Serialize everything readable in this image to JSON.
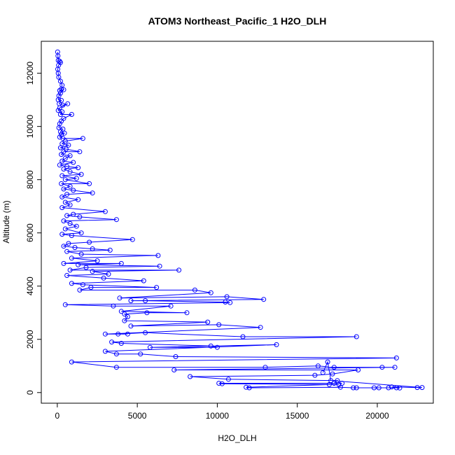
{
  "chart_data": {
    "type": "scatter",
    "title": "ATOM3 Northeast_Pacific_1 H2O_DLH",
    "xlabel": "H2O_DLH",
    "ylabel": "Altitude (m)",
    "xlim": [
      -1000,
      23500
    ],
    "ylim": [
      -400,
      13200
    ],
    "x_ticks": [
      0,
      5000,
      10000,
      15000,
      20000
    ],
    "y_ticks": [
      0,
      2000,
      4000,
      6000,
      8000,
      10000,
      12000
    ],
    "grid": false,
    "legend": "none",
    "color": "#0000ff",
    "marker": "open-circle",
    "connected": true,
    "points": [
      [
        20,
        12800
      ],
      [
        40,
        12650
      ],
      [
        60,
        12480
      ],
      [
        150,
        12450
      ],
      [
        200,
        12400
      ],
      [
        80,
        12300
      ],
      [
        30,
        12150
      ],
      [
        60,
        12000
      ],
      [
        90,
        11850
      ],
      [
        200,
        11700
      ],
      [
        300,
        11550
      ],
      [
        250,
        11400
      ],
      [
        150,
        11350
      ],
      [
        400,
        11380
      ],
      [
        200,
        11250
      ],
      [
        100,
        11150
      ],
      [
        60,
        11000
      ],
      [
        250,
        10980
      ],
      [
        120,
        10850
      ],
      [
        350,
        10800
      ],
      [
        650,
        10850
      ],
      [
        150,
        10700
      ],
      [
        60,
        10600
      ],
      [
        300,
        10550
      ],
      [
        200,
        10450
      ],
      [
        900,
        10450
      ],
      [
        400,
        10300
      ],
      [
        250,
        10200
      ],
      [
        150,
        10100
      ],
      [
        100,
        9950
      ],
      [
        350,
        9900
      ],
      [
        200,
        9800
      ],
      [
        450,
        9750
      ],
      [
        250,
        9700
      ],
      [
        150,
        9600
      ],
      [
        350,
        9550
      ],
      [
        1600,
        9550
      ],
      [
        500,
        9450
      ],
      [
        300,
        9350
      ],
      [
        700,
        9300
      ],
      [
        200,
        9200
      ],
      [
        550,
        9150
      ],
      [
        1400,
        9050
      ],
      [
        400,
        9050
      ],
      [
        250,
        8950
      ],
      [
        800,
        8900
      ],
      [
        500,
        8800
      ],
      [
        300,
        8700
      ],
      [
        1000,
        8650
      ],
      [
        150,
        8550
      ],
      [
        600,
        8500
      ],
      [
        1300,
        8450
      ],
      [
        400,
        8400
      ],
      [
        800,
        8300
      ],
      [
        1500,
        8200
      ],
      [
        300,
        8150
      ],
      [
        1200,
        8050
      ],
      [
        500,
        8000
      ],
      [
        2000,
        7850
      ],
      [
        250,
        7850
      ],
      [
        800,
        7750
      ],
      [
        400,
        7650
      ],
      [
        1000,
        7600
      ],
      [
        2200,
        7500
      ],
      [
        600,
        7450
      ],
      [
        300,
        7350
      ],
      [
        1300,
        7250
      ],
      [
        500,
        7150
      ],
      [
        800,
        7050
      ],
      [
        300,
        6950
      ],
      [
        3000,
        6800
      ],
      [
        1000,
        6700
      ],
      [
        600,
        6650
      ],
      [
        1400,
        6600
      ],
      [
        3700,
        6500
      ],
      [
        400,
        6450
      ],
      [
        800,
        6350
      ],
      [
        1200,
        6250
      ],
      [
        500,
        6150
      ],
      [
        1500,
        6000
      ],
      [
        300,
        5950
      ],
      [
        900,
        5900
      ],
      [
        4700,
        5750
      ],
      [
        2000,
        5650
      ],
      [
        700,
        5600
      ],
      [
        400,
        5500
      ],
      [
        1100,
        5450
      ],
      [
        2200,
        5400
      ],
      [
        3300,
        5350
      ],
      [
        600,
        5300
      ],
      [
        1500,
        5200
      ],
      [
        6300,
        5150
      ],
      [
        900,
        5050
      ],
      [
        2500,
        4950
      ],
      [
        400,
        4850
      ],
      [
        4000,
        4850
      ],
      [
        1300,
        4800
      ],
      [
        6400,
        4750
      ],
      [
        1800,
        4700
      ],
      [
        800,
        4600
      ],
      [
        7600,
        4600
      ],
      [
        2200,
        4550
      ],
      [
        3200,
        4450
      ],
      [
        600,
        4400
      ],
      [
        2900,
        4300
      ],
      [
        5400,
        4200
      ],
      [
        900,
        4100
      ],
      [
        1600,
        4050
      ],
      [
        6200,
        3950
      ],
      [
        2100,
        3950
      ],
      [
        1400,
        3850
      ],
      [
        8600,
        3850
      ],
      [
        9600,
        3750
      ],
      [
        3900,
        3550
      ],
      [
        10600,
        3600
      ],
      [
        12900,
        3500
      ],
      [
        4600,
        3450
      ],
      [
        5500,
        3450
      ],
      [
        10500,
        3400
      ],
      [
        10800,
        3380
      ],
      [
        500,
        3300
      ],
      [
        3500,
        3250
      ],
      [
        7100,
        3250
      ],
      [
        4000,
        3050
      ],
      [
        8100,
        3000
      ],
      [
        5600,
        3000
      ],
      [
        4200,
        2950
      ],
      [
        4400,
        2850
      ],
      [
        4200,
        2700
      ],
      [
        9400,
        2650
      ],
      [
        4600,
        2500
      ],
      [
        10100,
        2550
      ],
      [
        12700,
        2450
      ],
      [
        3000,
        2200
      ],
      [
        4400,
        2200
      ],
      [
        3800,
        2200
      ],
      [
        5500,
        2250
      ],
      [
        11600,
        2100
      ],
      [
        18700,
        2100
      ],
      [
        3400,
        1900
      ],
      [
        4000,
        1850
      ],
      [
        9600,
        1750
      ],
      [
        10000,
        1700
      ],
      [
        5800,
        1700
      ],
      [
        13700,
        1800
      ],
      [
        3000,
        1550
      ],
      [
        3700,
        1450
      ],
      [
        5200,
        1450
      ],
      [
        7400,
        1350
      ],
      [
        21200,
        1300
      ],
      [
        900,
        1150
      ],
      [
        3700,
        950
      ],
      [
        13000,
        950
      ],
      [
        16300,
        1000
      ],
      [
        17300,
        950
      ],
      [
        20300,
        950
      ],
      [
        21100,
        950
      ],
      [
        7300,
        850
      ],
      [
        18800,
        850
      ],
      [
        17200,
        700
      ],
      [
        16100,
        650
      ],
      [
        8300,
        600
      ],
      [
        10700,
        500
      ],
      [
        17500,
        450
      ],
      [
        17300,
        350
      ],
      [
        17800,
        350
      ],
      [
        10100,
        350
      ],
      [
        10300,
        330
      ],
      [
        17600,
        300
      ],
      [
        17000,
        300
      ],
      [
        11800,
        200
      ],
      [
        12000,
        180
      ],
      [
        17700,
        200
      ],
      [
        18500,
        180
      ],
      [
        18700,
        180
      ],
      [
        19800,
        180
      ],
      [
        20100,
        180
      ],
      [
        20700,
        180
      ],
      [
        21200,
        180
      ],
      [
        21400,
        170
      ],
      [
        20900,
        210
      ],
      [
        22500,
        190
      ],
      [
        22800,
        190
      ],
      [
        17100,
        450
      ],
      [
        16900,
        1150
      ],
      [
        16600,
        750
      ]
    ]
  }
}
